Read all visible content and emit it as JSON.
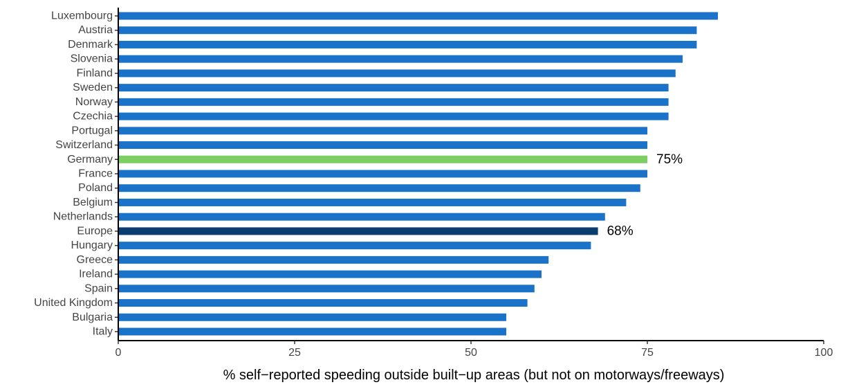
{
  "chart_data": {
    "type": "bar",
    "orientation": "horizontal",
    "categories": [
      "Luxembourg",
      "Austria",
      "Denmark",
      "Slovenia",
      "Finland",
      "Sweden",
      "Norway",
      "Czechia",
      "Portugal",
      "Switzerland",
      "Germany",
      "France",
      "Poland",
      "Belgium",
      "Netherlands",
      "Europe",
      "Hungary",
      "Greece",
      "Ireland",
      "Spain",
      "United Kingdom",
      "Bulgaria",
      "Italy"
    ],
    "values": [
      85,
      82,
      82,
      80,
      79,
      78,
      78,
      78,
      75,
      75,
      75,
      75,
      74,
      72,
      69,
      68,
      67,
      61,
      60,
      59,
      58,
      55,
      55
    ],
    "highlights": {
      "Germany": {
        "color": "#7dcf63",
        "label": "75%"
      },
      "Europe": {
        "color": "#0b3d6e",
        "label": "68%"
      }
    },
    "default_color": "#1a73c9",
    "xlim": [
      0,
      100
    ],
    "xticks": [
      0,
      25,
      50,
      75,
      100
    ],
    "xtick_labels": [
      "0",
      "25",
      "50",
      "75",
      "100"
    ],
    "xlabel": "% self−reported speeding outside built−up areas (but not on motorways/freeways)",
    "ylabel": "",
    "title": "",
    "grid": false,
    "legend": "none"
  }
}
